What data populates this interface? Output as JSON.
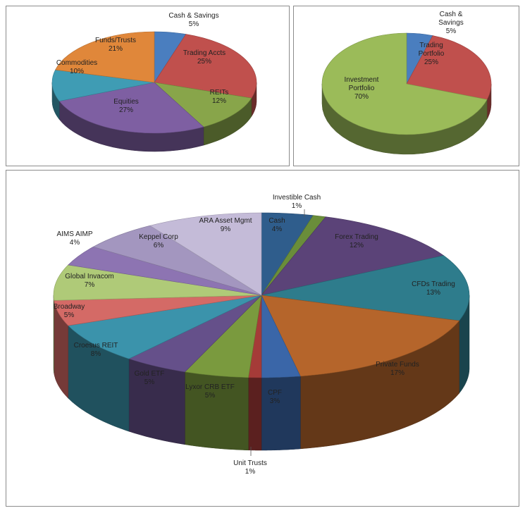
{
  "chart_data": [
    {
      "type": "pie",
      "title": "",
      "slices": [
        {
          "label": "Cash & Savings",
          "value": 5,
          "pct": "5%",
          "color": "#4a7ebf"
        },
        {
          "label": "Trading Accts",
          "value": 25,
          "pct": "25%",
          "color": "#c0504d"
        },
        {
          "label": "REITs",
          "value": 12,
          "pct": "12%",
          "color": "#88a54a"
        },
        {
          "label": "Equities",
          "value": 27,
          "pct": "27%",
          "color": "#7e5fa2"
        },
        {
          "label": "Commodities",
          "value": 10,
          "pct": "10%",
          "color": "#3f9cb4"
        },
        {
          "label": "Funds/Trusts",
          "value": 21,
          "pct": "21%",
          "color": "#e0873a"
        }
      ]
    },
    {
      "type": "pie",
      "title": "",
      "slices": [
        {
          "label": "Cash & Savings",
          "value": 5,
          "pct": "5%",
          "color": "#4a7ebf"
        },
        {
          "label": "Trading Portfolio",
          "value": 25,
          "pct": "25%",
          "color": "#c0504d"
        },
        {
          "label": "Investment Portfolio",
          "value": 70,
          "pct": "70%",
          "color": "#9bbb59"
        }
      ]
    },
    {
      "type": "pie",
      "title": "",
      "slices": [
        {
          "label": "Cash",
          "value": 4,
          "pct": "4%",
          "color": "#2f5d8c"
        },
        {
          "label": "Investible Cash",
          "value": 1,
          "pct": "1%",
          "color": "#6a8d3a"
        },
        {
          "label": "Forex Trading",
          "value": 12,
          "pct": "12%",
          "color": "#5b4378"
        },
        {
          "label": "CFDs Trading",
          "value": 13,
          "pct": "13%",
          "color": "#2e7c8c"
        },
        {
          "label": "Private Funds",
          "value": 17,
          "pct": "17%",
          "color": "#b5652b"
        },
        {
          "label": "CPF",
          "value": 3,
          "pct": "3%",
          "color": "#3a66a8"
        },
        {
          "label": "Unit Trusts",
          "value": 1,
          "pct": "1%",
          "color": "#a53b38"
        },
        {
          "label": "Lyxor CRB ETF",
          "value": 5,
          "pct": "5%",
          "color": "#7a9a3e"
        },
        {
          "label": "Gold ETF",
          "value": 5,
          "pct": "5%",
          "color": "#65508a"
        },
        {
          "label": "Croesus REIT",
          "value": 8,
          "pct": "8%",
          "color": "#3b93ab"
        },
        {
          "label": "Broadway",
          "value": 5,
          "pct": "5%",
          "color": "#d46a66"
        },
        {
          "label": "Global Invacom",
          "value": 7,
          "pct": "7%",
          "color": "#afca78"
        },
        {
          "label": "AIMS AIMP",
          "value": 4,
          "pct": "4%",
          "color": "#8d74b2"
        },
        {
          "label": "Keppel Corp",
          "value": 6,
          "pct": "6%",
          "color": "#a396bf"
        },
        {
          "label": "ARA Asset Mgmt",
          "value": 9,
          "pct": "9%",
          "color": "#c4bbd8"
        }
      ]
    }
  ]
}
